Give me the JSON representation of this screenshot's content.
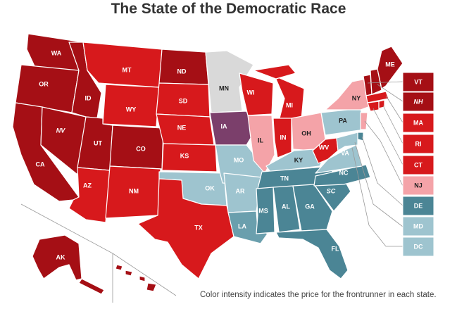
{
  "title": "The State of the Democratic Race",
  "caption": "Color intensity indicates the price for the frontrunner in each state.",
  "colors": {
    "bernie_dark": "#a50f15",
    "bernie_mid": "#d7191c",
    "bernie_light": "#f4a3a8",
    "iowa_purple": "#7b3f6b",
    "biden_dark": "#4b8595",
    "biden_mid": "#6a9fad",
    "biden_light": "#9ec4cf",
    "no_market": "#d9d9d9"
  },
  "states": {
    "WA": "WA",
    "OR": "OR",
    "CA": "CA",
    "NV": "NV",
    "ID": "ID",
    "MT": "MT",
    "WY": "WY",
    "UT": "UT",
    "CO": "CO",
    "AZ": "AZ",
    "NM": "NM",
    "ND": "ND",
    "SD": "SD",
    "NE": "NE",
    "KS": "KS",
    "OK": "OK",
    "TX": "TX",
    "MN": "MN",
    "IA": "IA",
    "MO": "MO",
    "AR": "AR",
    "LA": "LA",
    "WI": "WI",
    "IL": "IL",
    "MI": "MI",
    "IN": "IN",
    "OH": "OH",
    "KY": "KY",
    "TN": "TN",
    "MS": "MS",
    "AL": "AL",
    "GA": "GA",
    "FL": "FL",
    "SC": "SC",
    "NC": "NC",
    "VA": "VA",
    "WV": "WV",
    "PA": "PA",
    "NY": "NY",
    "ME": "ME",
    "AK": "AK"
  },
  "side_labels": [
    {
      "abbr": "VT",
      "color": "#a50f15",
      "italic": false,
      "dark": false
    },
    {
      "abbr": "NH",
      "color": "#a50f15",
      "italic": true,
      "dark": false
    },
    {
      "abbr": "MA",
      "color": "#d7191c",
      "italic": false,
      "dark": false
    },
    {
      "abbr": "RI",
      "color": "#d7191c",
      "italic": false,
      "dark": false
    },
    {
      "abbr": "CT",
      "color": "#d7191c",
      "italic": false,
      "dark": false
    },
    {
      "abbr": "NJ",
      "color": "#f4a3a8",
      "italic": false,
      "dark": true
    },
    {
      "abbr": "DE",
      "color": "#4b8595",
      "italic": false,
      "dark": false
    },
    {
      "abbr": "MD",
      "color": "#9ec4cf",
      "italic": false,
      "dark": false
    },
    {
      "abbr": "DC",
      "color": "#9ec4cf",
      "italic": false,
      "dark": false
    }
  ]
}
